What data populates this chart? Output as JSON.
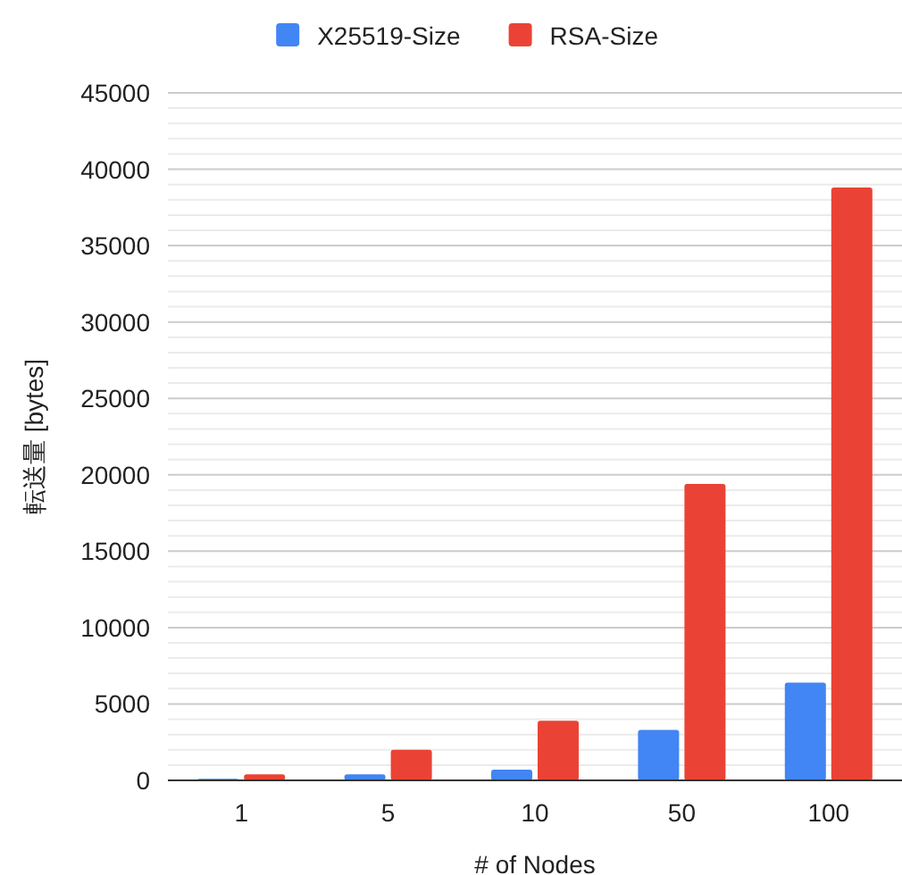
{
  "chart_data": {
    "type": "bar",
    "xlabel": "# of Nodes",
    "ylabel": "転送量 [bytes]",
    "categories": [
      "1",
      "5",
      "10",
      "50",
      "100"
    ],
    "series": [
      {
        "name": "X25519-Size",
        "color": "#4285f4",
        "values": [
          100,
          400,
          700,
          3300,
          6400
        ]
      },
      {
        "name": "RSA-Size",
        "color": "#ea4335",
        "values": [
          400,
          2000,
          3900,
          19400,
          38800
        ]
      }
    ],
    "ylim": [
      0,
      45000
    ],
    "yticks": [
      0,
      {
        "value": 1000,
        "label": null
      },
      {
        "value": 2000,
        "label": null
      },
      {
        "value": 3000,
        "label": null
      },
      {
        "value": 4000,
        "label": null
      },
      5000,
      {
        "value": 6000,
        "label": null
      },
      {
        "value": 7000,
        "label": null
      },
      {
        "value": 8000,
        "label": null
      },
      {
        "value": 9000,
        "label": null
      },
      10000,
      {
        "value": 11000,
        "label": null
      },
      {
        "value": 12000,
        "label": null
      },
      {
        "value": 13000,
        "label": null
      },
      {
        "value": 14000,
        "label": null
      },
      15000,
      {
        "value": 16000,
        "label": null
      },
      {
        "value": 17000,
        "label": null
      },
      {
        "value": 18000,
        "label": null
      },
      {
        "value": 19000,
        "label": null
      },
      20000,
      {
        "value": 21000,
        "label": null
      },
      {
        "value": 22000,
        "label": null
      },
      {
        "value": 23000,
        "label": null
      },
      {
        "value": 24000,
        "label": null
      },
      25000,
      {
        "value": 26000,
        "label": null
      },
      {
        "value": 27000,
        "label": null
      },
      {
        "value": 28000,
        "label": null
      },
      {
        "value": 29000,
        "label": null
      },
      30000,
      {
        "value": 31000,
        "label": null
      },
      {
        "value": 32000,
        "label": null
      },
      {
        "value": 33000,
        "label": null
      },
      {
        "value": 34000,
        "label": null
      },
      35000,
      {
        "value": 36000,
        "label": null
      },
      {
        "value": 37000,
        "label": null
      },
      {
        "value": 38000,
        "label": null
      },
      {
        "value": 39000,
        "label": null
      },
      40000,
      {
        "value": 41000,
        "label": null
      },
      {
        "value": 42000,
        "label": null
      },
      {
        "value": 43000,
        "label": null
      },
      {
        "value": 44000,
        "label": null
      },
      45000
    ],
    "grid": "y",
    "legend": "top"
  }
}
